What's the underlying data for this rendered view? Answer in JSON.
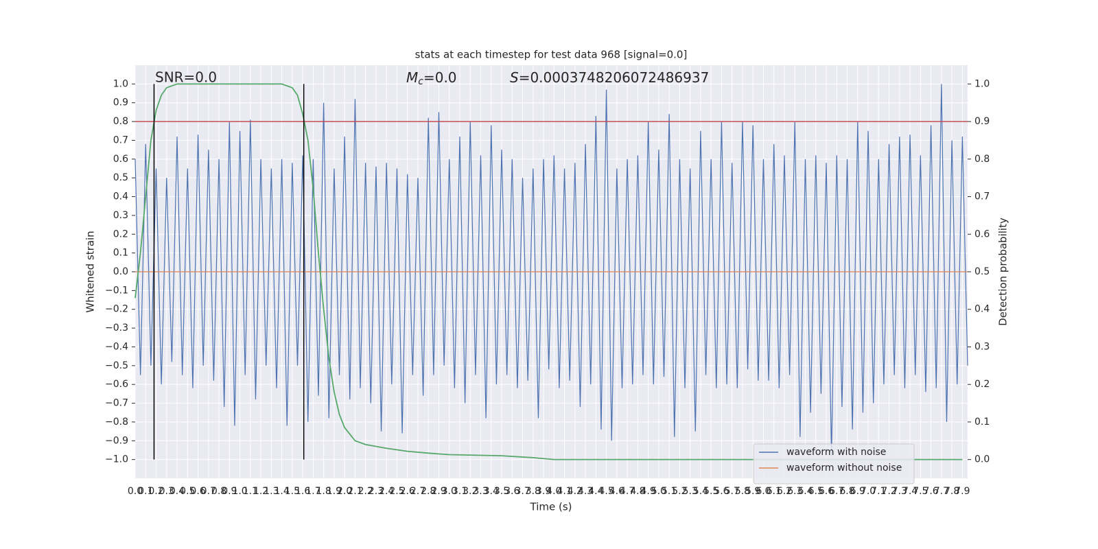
{
  "chart_data": {
    "type": "line",
    "title": "stats at each timestep for test data 968 [signal=0.0]",
    "xlabel": "Time (s)",
    "ylabel": "Whitened strain",
    "y2label": "Detection probability",
    "annotations": {
      "snr": "SNR=0.0",
      "mc": {
        "symbol": "M",
        "sub": "c",
        "text": "=0.0"
      },
      "s": {
        "symbol": "S",
        "text": "=0.0003748206072486937"
      }
    },
    "xlim": [
      0,
      7.95
    ],
    "ylim": [
      -1.1,
      1.1
    ],
    "y2lim": [
      -0.05,
      1.05
    ],
    "grid": true,
    "legend": "lower right",
    "xticks": [
      {
        "value": 0,
        "label": "0.0"
      },
      0.1,
      0.2,
      0.3,
      0.4,
      0.5,
      0.6,
      0.7,
      0.8,
      0.9,
      {
        "value": 1,
        "label": "1.0"
      },
      1.1,
      1.2,
      1.3,
      1.4,
      1.5,
      1.6,
      1.7,
      1.8,
      1.9,
      {
        "value": 2,
        "label": "2.0"
      },
      2.1,
      2.2,
      2.3,
      2.4,
      2.5,
      2.6,
      2.7,
      2.8,
      2.9,
      {
        "value": 3,
        "label": "3.0"
      },
      3.1,
      3.2,
      3.3,
      3.4,
      3.5,
      3.6,
      3.7,
      3.8,
      3.9,
      {
        "value": 4,
        "label": "4.0"
      },
      4.1,
      4.2,
      4.3,
      4.4,
      4.5,
      4.6,
      4.7,
      4.8,
      4.9,
      {
        "value": 5,
        "label": "5.0"
      },
      5.1,
      5.2,
      5.3,
      5.4,
      5.5,
      5.6,
      5.7,
      5.8,
      5.9,
      {
        "value": 6,
        "label": "6.0"
      },
      6.1,
      6.2,
      6.3,
      6.4,
      6.5,
      6.6,
      6.7,
      6.8,
      6.9,
      {
        "value": 7,
        "label": "7.0"
      },
      7.1,
      7.2,
      7.3,
      7.4,
      7.5,
      7.6,
      7.7,
      7.8,
      7.9
    ],
    "yticks": [
      {
        "value": -1,
        "label": "−1.0"
      },
      {
        "value": -0.9,
        "label": "−0.9"
      },
      {
        "value": -0.8,
        "label": "−0.8"
      },
      {
        "value": -0.7,
        "label": "−0.7"
      },
      {
        "value": -0.6,
        "label": "−0.6"
      },
      {
        "value": -0.5,
        "label": "−0.5"
      },
      {
        "value": -0.4,
        "label": "−0.4"
      },
      {
        "value": -0.3,
        "label": "−0.3"
      },
      {
        "value": -0.2,
        "label": "−0.2"
      },
      {
        "value": -0.1,
        "label": "−0.1"
      },
      {
        "value": 0,
        "label": "0.0"
      },
      0.1,
      0.2,
      0.3,
      0.4,
      0.5,
      0.6,
      0.7,
      0.8,
      0.9,
      {
        "value": 1,
        "label": "1.0"
      }
    ],
    "y2ticks": [
      {
        "value": 0,
        "label": "0.0"
      },
      0.1,
      0.2,
      0.3,
      0.4,
      0.5,
      0.6,
      0.7,
      0.8,
      0.9,
      {
        "value": 1,
        "label": "1.0"
      }
    ],
    "hlines": [
      {
        "y": 0.8,
        "color": "#c44e52"
      }
    ],
    "vlines": [
      {
        "x": 0.18,
        "ymin": -1,
        "ymax": 1,
        "color": "#000000"
      },
      {
        "x": 1.61,
        "ymin": -1,
        "ymax": 1,
        "color": "#000000"
      }
    ],
    "series": [
      {
        "name": "waveform with noise",
        "color": "#4c72b0",
        "x": [
          0,
          0.05,
          0.1,
          0.15,
          0.2,
          0.25,
          0.3,
          0.35,
          0.4,
          0.45,
          0.5,
          0.55,
          0.6,
          0.65,
          0.7,
          0.75,
          0.8,
          0.85,
          0.9,
          0.95,
          1,
          1.05,
          1.1,
          1.15,
          1.2,
          1.25,
          1.3,
          1.35,
          1.4,
          1.45,
          1.5,
          1.55,
          1.6,
          1.65,
          1.7,
          1.75,
          1.8,
          1.85,
          1.9,
          1.95,
          2,
          2.05,
          2.1,
          2.15,
          2.2,
          2.25,
          2.3,
          2.35,
          2.4,
          2.45,
          2.5,
          2.55,
          2.6,
          2.65,
          2.7,
          2.75,
          2.8,
          2.85,
          2.9,
          2.95,
          3,
          3.05,
          3.1,
          3.15,
          3.2,
          3.25,
          3.3,
          3.35,
          3.4,
          3.45,
          3.5,
          3.55,
          3.6,
          3.65,
          3.7,
          3.75,
          3.8,
          3.85,
          3.9,
          3.95,
          4,
          4.05,
          4.1,
          4.15,
          4.2,
          4.25,
          4.3,
          4.35,
          4.4,
          4.45,
          4.5,
          4.55,
          4.6,
          4.65,
          4.7,
          4.75,
          4.8,
          4.85,
          4.9,
          4.95,
          5,
          5.05,
          5.1,
          5.15,
          5.2,
          5.25,
          5.3,
          5.35,
          5.4,
          5.45,
          5.5,
          5.55,
          5.6,
          5.65,
          5.7,
          5.75,
          5.8,
          5.85,
          5.9,
          5.95,
          6,
          6.05,
          6.1,
          6.15,
          6.2,
          6.25,
          6.3,
          6.35,
          6.4,
          6.45,
          6.5,
          6.55,
          6.6,
          6.65,
          6.7,
          6.75,
          6.8,
          6.85,
          6.9,
          6.95,
          7,
          7.05,
          7.1,
          7.15,
          7.2,
          7.25,
          7.3,
          7.35,
          7.4,
          7.45,
          7.5,
          7.55,
          7.6,
          7.65,
          7.7,
          7.75,
          7.8,
          7.85,
          7.9,
          7.95
        ],
        "values": [
          0.6,
          -0.55,
          0.68,
          -0.5,
          0.55,
          -0.6,
          0.5,
          -0.48,
          0.72,
          -0.55,
          0.55,
          -0.62,
          0.73,
          -0.5,
          0.65,
          -0.58,
          0.6,
          -0.72,
          0.8,
          -0.82,
          0.75,
          -0.55,
          0.81,
          -0.68,
          0.6,
          -0.5,
          0.55,
          -0.62,
          0.6,
          -0.82,
          0.58,
          -0.5,
          0.62,
          -0.8,
          0.6,
          -0.66,
          0.9,
          -0.78,
          0.55,
          -0.55,
          0.72,
          -0.68,
          0.92,
          -0.62,
          0.58,
          -0.7,
          0.56,
          -0.85,
          0.58,
          -0.6,
          0.55,
          -0.86,
          0.52,
          -0.55,
          0.5,
          -0.66,
          0.82,
          -0.55,
          0.85,
          -0.5,
          0.6,
          -0.62,
          0.72,
          -0.7,
          0.8,
          -0.55,
          0.62,
          -0.78,
          0.78,
          -0.6,
          0.65,
          -0.55,
          0.6,
          -0.62,
          0.5,
          -0.58,
          0.55,
          -0.78,
          0.6,
          -0.52,
          0.62,
          -0.62,
          0.55,
          -0.58,
          0.58,
          -0.72,
          0.68,
          -0.6,
          0.83,
          -0.84,
          0.97,
          -0.9,
          0.55,
          -0.62,
          0.6,
          -0.6,
          0.62,
          -0.55,
          0.8,
          -0.6,
          0.65,
          -0.56,
          0.84,
          -0.88,
          0.6,
          -0.62,
          0.55,
          -0.85,
          0.75,
          -0.55,
          0.6,
          -0.62,
          0.8,
          -0.6,
          0.58,
          -0.62,
          0.8,
          -0.52,
          0.78,
          -0.58,
          0.6,
          -0.58,
          0.68,
          -0.62,
          0.62,
          -0.55,
          0.8,
          -0.88,
          0.6,
          -0.75,
          0.62,
          -0.65,
          0.58,
          -0.98,
          0.62,
          -0.72,
          0.6,
          -0.84,
          0.8,
          -0.75,
          0.75,
          -0.7,
          0.6,
          -0.6,
          0.68,
          -0.55,
          0.72,
          -0.62,
          0.73,
          -0.55,
          0.62,
          -0.64,
          0.78,
          -0.62,
          1.0,
          -0.8,
          0.7,
          -0.6,
          0.72,
          -0.5
        ]
      },
      {
        "name": "waveform without noise",
        "color": "#dd8452",
        "x": [
          0,
          7.95
        ],
        "values": [
          0,
          0
        ]
      },
      {
        "color": "#55a868",
        "axis": "y2",
        "x": [
          0,
          0.05,
          0.1,
          0.15,
          0.2,
          0.25,
          0.3,
          0.4,
          1.4,
          1.5,
          1.55,
          1.6,
          1.65,
          1.7,
          1.75,
          1.8,
          1.85,
          1.9,
          1.95,
          2.0,
          2.1,
          2.2,
          2.4,
          2.6,
          2.8,
          3.0,
          3.5,
          3.8,
          4.0,
          7.9
        ],
        "values": [
          0.43,
          0.55,
          0.7,
          0.85,
          0.93,
          0.97,
          0.99,
          1.0,
          1.0,
          0.99,
          0.97,
          0.92,
          0.85,
          0.72,
          0.55,
          0.4,
          0.27,
          0.18,
          0.12,
          0.085,
          0.05,
          0.04,
          0.03,
          0.022,
          0.017,
          0.013,
          0.01,
          0.005,
          0.0,
          0.0
        ]
      }
    ]
  }
}
